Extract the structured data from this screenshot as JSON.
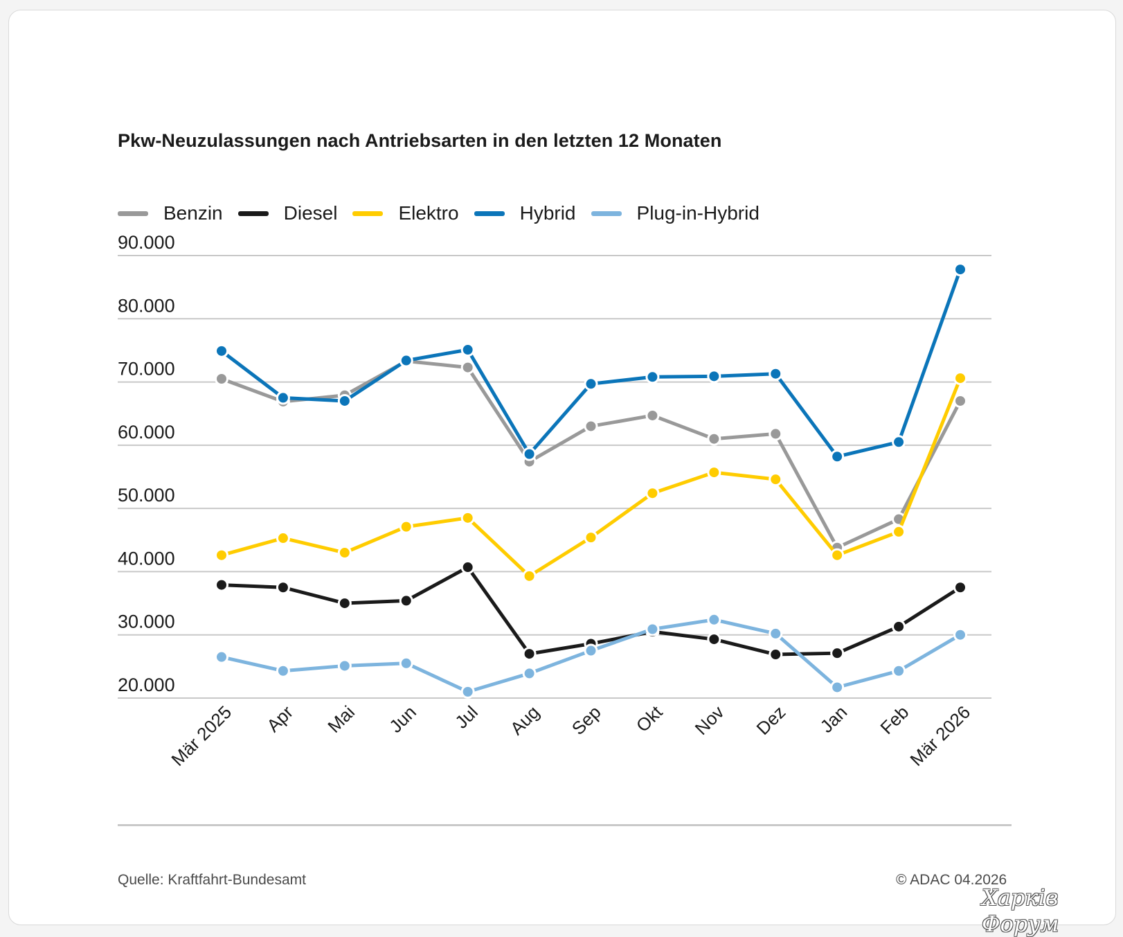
{
  "chart_data": {
    "type": "line",
    "title": "Pkw-Neuzulassungen nach Antriebsarten in den letzten 12 Monaten",
    "categories": [
      "Mär 2025",
      "Apr",
      "Mai",
      "Jun",
      "Jul",
      "Aug",
      "Sep",
      "Okt",
      "Nov",
      "Dez",
      "Jan",
      "Feb",
      "Mär 2026"
    ],
    "y_ticks": [
      "20.000",
      "30.000",
      "40.000",
      "50.000",
      "60.000",
      "70.000",
      "80.000",
      "90.000"
    ],
    "ylim": [
      20000,
      90000
    ],
    "grid": true,
    "legend_position": "top-left",
    "series": [
      {
        "name": "Benzin",
        "color": "#999999",
        "values": [
          70500,
          66900,
          67900,
          73300,
          72300,
          57400,
          63000,
          64700,
          61000,
          61800,
          43800,
          48300,
          67000
        ]
      },
      {
        "name": "Diesel",
        "color": "#1a1a1a",
        "values": [
          37900,
          37500,
          35000,
          35400,
          40700,
          27000,
          28600,
          30500,
          29300,
          26900,
          27100,
          31300,
          37500
        ]
      },
      {
        "name": "Elektro",
        "color": "#ffcc00",
        "values": [
          42600,
          45300,
          43000,
          47100,
          48500,
          39300,
          45400,
          52400,
          55700,
          54600,
          42600,
          46300,
          70600
        ]
      },
      {
        "name": "Hybrid",
        "color": "#0b75b9",
        "values": [
          74900,
          67500,
          67000,
          73400,
          75100,
          58600,
          69700,
          70800,
          70900,
          71300,
          58200,
          60500,
          87800
        ]
      },
      {
        "name": "Plug-in-Hybrid",
        "color": "#7db4de",
        "values": [
          26500,
          24300,
          25100,
          25500,
          21000,
          23900,
          27500,
          30900,
          32400,
          30200,
          21700,
          24300,
          30000
        ]
      }
    ]
  },
  "footer": {
    "source": "Quelle: Kraftfahrt-Bundesamt",
    "copyright": "© ADAC 04.2026"
  },
  "watermark": "Харків Форум"
}
